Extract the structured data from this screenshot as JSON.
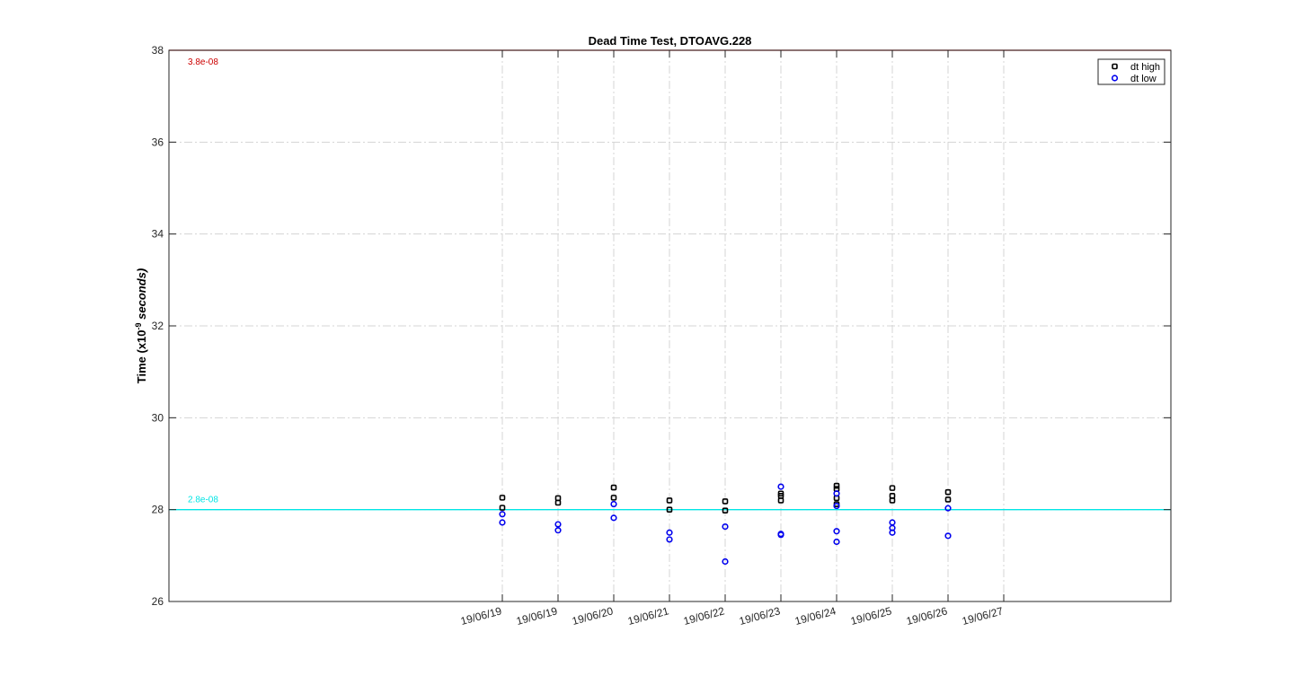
{
  "chart_data": {
    "type": "scatter",
    "title": "Dead Time Test, DTOAVG.228",
    "ylabel": "Time (x10",
    "ylabel_exp": "-9",
    "ylabel_unit": " seconds)",
    "ylim": [
      26,
      38
    ],
    "yticks": [
      26,
      28,
      30,
      32,
      34,
      36,
      38
    ],
    "grid": true,
    "legend_position": "top-right",
    "xticks": [
      {
        "x": 1,
        "label": "19/06/19"
      },
      {
        "x": 2,
        "label": "19/06/19"
      },
      {
        "x": 3,
        "label": "19/06/20"
      },
      {
        "x": 4,
        "label": "19/06/21"
      },
      {
        "x": 5,
        "label": "19/06/22"
      },
      {
        "x": 6,
        "label": "19/06/23"
      },
      {
        "x": 7,
        "label": "19/06/24"
      },
      {
        "x": 8,
        "label": "19/06/25"
      },
      {
        "x": 9,
        "label": "19/06/26"
      },
      {
        "x": 10,
        "label": "19/06/27"
      }
    ],
    "reference_lines": [
      {
        "y": 38,
        "label": "3.8e-08",
        "color": "#cc0000"
      },
      {
        "y": 28,
        "label": "2.8e-08",
        "color": "#00e5e5"
      }
    ],
    "series": [
      {
        "name": "dt high",
        "color": "#000000",
        "marker": "square",
        "points": [
          [
            1.0,
            28.26
          ],
          [
            1.0,
            28.04
          ],
          [
            2.0,
            28.25
          ],
          [
            2.0,
            28.15
          ],
          [
            3.0,
            28.48
          ],
          [
            3.0,
            28.26
          ],
          [
            4.0,
            28.2
          ],
          [
            4.0,
            28.0
          ],
          [
            5.0,
            28.18
          ],
          [
            5.0,
            27.98
          ],
          [
            6.0,
            28.35
          ],
          [
            6.0,
            28.3
          ],
          [
            6.0,
            28.2
          ],
          [
            7.0,
            28.52
          ],
          [
            7.0,
            28.45
          ],
          [
            7.0,
            28.25
          ],
          [
            7.0,
            28.12
          ],
          [
            8.0,
            28.47
          ],
          [
            8.0,
            28.3
          ],
          [
            8.0,
            28.2
          ],
          [
            9.0,
            28.38
          ],
          [
            9.0,
            28.22
          ]
        ]
      },
      {
        "name": "dt low",
        "color": "#0000ee",
        "marker": "circle",
        "points": [
          [
            1.0,
            27.9
          ],
          [
            1.0,
            27.72
          ],
          [
            2.0,
            27.68
          ],
          [
            2.0,
            27.55
          ],
          [
            3.0,
            28.12
          ],
          [
            3.0,
            27.82
          ],
          [
            4.0,
            27.5
          ],
          [
            4.0,
            27.35
          ],
          [
            5.0,
            27.63
          ],
          [
            5.0,
            26.87
          ],
          [
            6.0,
            28.5
          ],
          [
            6.0,
            27.47
          ],
          [
            6.0,
            27.45
          ],
          [
            7.0,
            28.35
          ],
          [
            7.0,
            28.08
          ],
          [
            7.0,
            27.53
          ],
          [
            7.0,
            27.3
          ],
          [
            8.0,
            27.72
          ],
          [
            8.0,
            27.6
          ],
          [
            8.0,
            27.5
          ],
          [
            9.0,
            28.03
          ],
          [
            9.0,
            27.43
          ]
        ]
      }
    ]
  }
}
